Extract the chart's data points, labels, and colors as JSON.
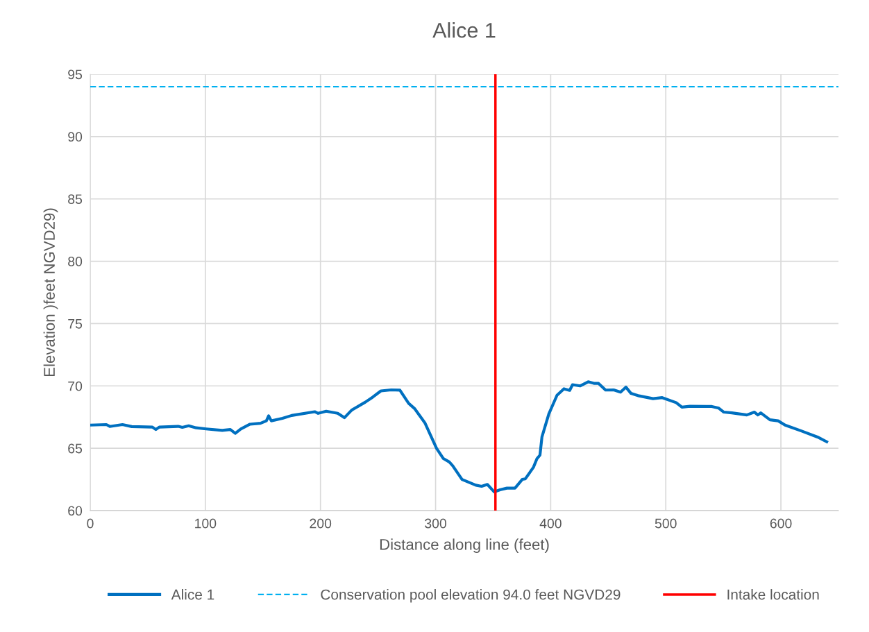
{
  "chart_data": {
    "type": "line",
    "title": "Alice 1",
    "xlabel": "Distance along line (feet)",
    "ylabel": "Elevation )feet NGVD29)",
    "xlim": [
      0,
      650
    ],
    "xticks": [
      0,
      100,
      200,
      300,
      400,
      500,
      600
    ],
    "ylim": [
      60,
      95
    ],
    "yticks": [
      60,
      65,
      70,
      75,
      80,
      85,
      90,
      95
    ],
    "grid": true,
    "legend": "bottom",
    "line_style": "solid",
    "marker": "none",
    "series": [
      {
        "name": "Alice 1",
        "color": "#0070c0",
        "x": [
          0,
          14,
          17,
          28,
          36,
          54,
          57,
          60,
          76.5,
          80,
          85.5,
          92,
          100.6,
          114.7,
          121.7,
          126,
          130.8,
          138.8,
          147.9,
          153,
          155,
          157.3,
          167,
          175,
          195,
          198,
          205,
          215,
          220.8,
          227,
          239,
          245.4,
          252.5,
          261.5,
          269,
          276.6,
          281.7,
          290.7,
          300.8,
          306.8,
          311.9,
          314.9,
          323,
          335,
          340,
          345,
          351,
          356,
          362,
          369,
          375.3,
          378,
          385,
          388,
          390.7,
          392.4,
          398.4,
          405.5,
          411.5,
          416.5,
          419,
          425.5,
          432.6,
          438,
          441.6,
          447.7,
          454.7,
          460.7,
          465.4,
          469.8,
          476.8,
          488.9,
          496.9,
          509,
          514,
          521,
          540,
          546,
          550.4,
          557.4,
          570.4,
          577,
          580,
          582.5,
          590.5,
          597.6,
          603.6,
          617.7,
          631.8,
          639.8
        ],
        "values": [
          66.86,
          66.9,
          66.75,
          66.9,
          66.74,
          66.7,
          66.5,
          66.7,
          66.76,
          66.68,
          66.8,
          66.64,
          66.55,
          66.43,
          66.5,
          66.2,
          66.55,
          66.93,
          67.0,
          67.2,
          67.6,
          67.2,
          67.4,
          67.63,
          67.93,
          67.8,
          67.97,
          67.8,
          67.45,
          68.05,
          68.7,
          69.1,
          69.6,
          69.68,
          69.66,
          68.6,
          68.19,
          67.04,
          65.0,
          64.17,
          63.9,
          63.6,
          62.5,
          62.04,
          61.95,
          62.1,
          61.5,
          61.67,
          61.8,
          61.8,
          62.5,
          62.55,
          63.47,
          64.15,
          64.45,
          65.9,
          67.76,
          69.25,
          69.77,
          69.64,
          70.1,
          70.0,
          70.33,
          70.2,
          70.2,
          69.67,
          69.68,
          69.5,
          69.9,
          69.4,
          69.2,
          68.98,
          69.06,
          68.66,
          68.3,
          68.37,
          68.35,
          68.22,
          67.9,
          67.84,
          67.67,
          67.9,
          67.67,
          67.84,
          67.28,
          67.2,
          66.86,
          66.39,
          65.9,
          65.52
        ]
      }
    ],
    "ref_lines": [
      {
        "axis": "y",
        "value": 94,
        "label": "Conservation pool elevation 94.0 feet NGVD29",
        "color": "#00b0f0",
        "line_style": "dashed"
      },
      {
        "axis": "x",
        "value": 352,
        "label": "Intake location",
        "color": "#ff0000",
        "line_style": "solid"
      }
    ]
  }
}
